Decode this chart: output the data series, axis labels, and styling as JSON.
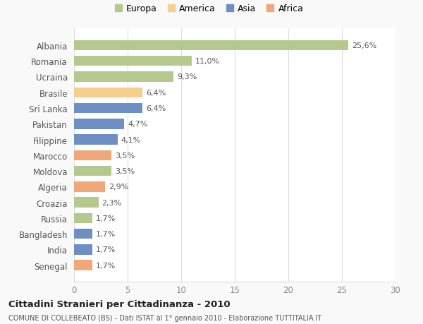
{
  "categories": [
    "Albania",
    "Romania",
    "Ucraina",
    "Brasile",
    "Sri Lanka",
    "Pakistan",
    "Filippine",
    "Marocco",
    "Moldova",
    "Algeria",
    "Croazia",
    "Russia",
    "Bangladesh",
    "India",
    "Senegal"
  ],
  "values": [
    25.6,
    11.0,
    9.3,
    6.4,
    6.4,
    4.7,
    4.1,
    3.5,
    3.5,
    2.9,
    2.3,
    1.7,
    1.7,
    1.7,
    1.7
  ],
  "labels": [
    "25,6%",
    "11,0%",
    "9,3%",
    "6,4%",
    "6,4%",
    "4,7%",
    "4,1%",
    "3,5%",
    "3,5%",
    "2,9%",
    "2,3%",
    "1,7%",
    "1,7%",
    "1,7%",
    "1,7%"
  ],
  "colors": [
    "#b5c98e",
    "#b5c98e",
    "#b5c98e",
    "#f5d08c",
    "#6e8fc4",
    "#6e8fc4",
    "#6e8fc4",
    "#f0a878",
    "#b5c98e",
    "#f0a878",
    "#b5c98e",
    "#b5c98e",
    "#6e8fc4",
    "#6e8fc4",
    "#f0a878"
  ],
  "continents": [
    "Europa",
    "America",
    "Asia",
    "Africa"
  ],
  "legend_colors": [
    "#b5c98e",
    "#f5d08c",
    "#6e8fc4",
    "#f0a878"
  ],
  "xlim": [
    0,
    30
  ],
  "xticks": [
    0,
    5,
    10,
    15,
    20,
    25,
    30
  ],
  "title": "Cittadini Stranieri per Cittadinanza - 2010",
  "subtitle": "COMUNE DI COLLEBEATO (BS) - Dati ISTAT al 1° gennaio 2010 - Elaborazione TUTTITALIA.IT",
  "background_color": "#f9f9f9",
  "bar_background": "#ffffff",
  "grid_color": "#dddddd"
}
